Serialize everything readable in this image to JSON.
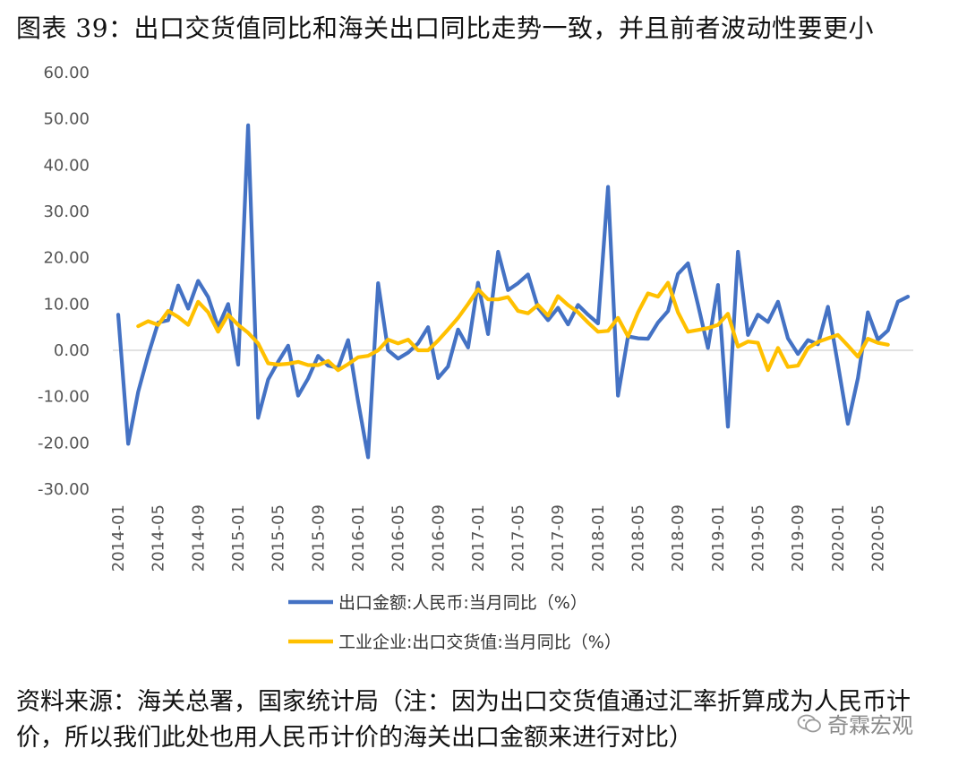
{
  "title": "图表 39：出口交货值同比和海关出口同比走势一致，并且前者波动性要更小",
  "source": "资料来源：海关总署，国家统计局（注：因为出口交货值通过汇率折算成为人民币计价，所以我们此处也用人民币计价的海关出口金额来进行对比）",
  "watermark": "奇霖宏观",
  "chart_data": {
    "type": "line",
    "title": "",
    "xlabel": "",
    "ylabel": "",
    "ylim": [
      -30,
      60
    ],
    "yticks": [
      60,
      50,
      40,
      30,
      20,
      10,
      0,
      -10,
      -20,
      -30
    ],
    "ytick_labels": [
      "60.00",
      "50.00",
      "40.00",
      "30.00",
      "20.00",
      "10.00",
      "0.00",
      "-10.00",
      "-20.00",
      "-30.00"
    ],
    "xtick_labels": [
      "2014-01",
      "2014-05",
      "2014-09",
      "2015-01",
      "2015-05",
      "2015-09",
      "2016-01",
      "2016-05",
      "2016-09",
      "2017-01",
      "2017-05",
      "2017-09",
      "2018-01",
      "2018-05",
      "2018-09",
      "2019-01",
      "2019-05",
      "2019-09",
      "2020-01",
      "2020-05"
    ],
    "x_start": "2014-01",
    "series": [
      {
        "name": "出口金额:人民币:当月同比（%）",
        "color": "#4472C4",
        "start_index": 0,
        "values": [
          7.7,
          -20.2,
          -9,
          -1,
          6,
          6.5,
          14,
          9,
          15,
          11.5,
          5,
          10,
          -3.1,
          48.6,
          -14.6,
          -6.3,
          -2.5,
          1,
          -9.8,
          -6.1,
          -1.2,
          -3.3,
          -3.8,
          2.2,
          -11,
          -23.1,
          14.5,
          0,
          -1.8,
          -0.5,
          1.5,
          5,
          -6,
          -3.5,
          4.5,
          0.6,
          14.6,
          3.5,
          21.3,
          13,
          14.5,
          16.4,
          9.2,
          6.5,
          9.2,
          5.6,
          9.8,
          7.7,
          5.8,
          35.3,
          -9.8,
          3,
          2.6,
          2.5,
          6,
          8.5,
          16.5,
          18.8,
          9.9,
          0.5,
          14.1,
          -16.5,
          21.3,
          3.3,
          7.7,
          6.1,
          10.5,
          2.6,
          -0.8,
          2.2,
          1.3,
          9.4,
          -3,
          -15.9,
          -6,
          8.2,
          2.3,
          4.3,
          10.5,
          11.6
        ]
      },
      {
        "name": "工业企业:出口交货值:当月同比（%）",
        "color": "#FFC000",
        "start_index": 2,
        "values": [
          5.2,
          6.3,
          5.5,
          8.5,
          7.2,
          5.5,
          10.5,
          8.2,
          4,
          7.7,
          5.5,
          3.8,
          1.5,
          -2.8,
          -3.1,
          -2.9,
          -2.5,
          -3.2,
          -3.2,
          -2.3,
          -4.3,
          -3,
          -1.5,
          -1.2,
          0,
          2.3,
          1.5,
          2.3,
          0,
          0,
          2.1,
          4.5,
          7,
          10,
          13.2,
          11,
          11,
          11.5,
          8.5,
          8,
          9.8,
          7.5,
          11.7,
          9.8,
          8.2,
          6,
          4,
          4.2,
          7,
          3,
          8.2,
          12.3,
          11.6,
          14.6,
          8.2,
          4,
          4.4,
          4.8,
          5.5,
          7.9,
          0.8,
          1.9,
          1.6,
          -4.3,
          0.5,
          -3.6,
          -3.3,
          0.5,
          1.8,
          2.6,
          3.3,
          1,
          -1.4,
          2.5,
          1.6,
          1.2
        ]
      }
    ],
    "legend_position": "bottom"
  }
}
